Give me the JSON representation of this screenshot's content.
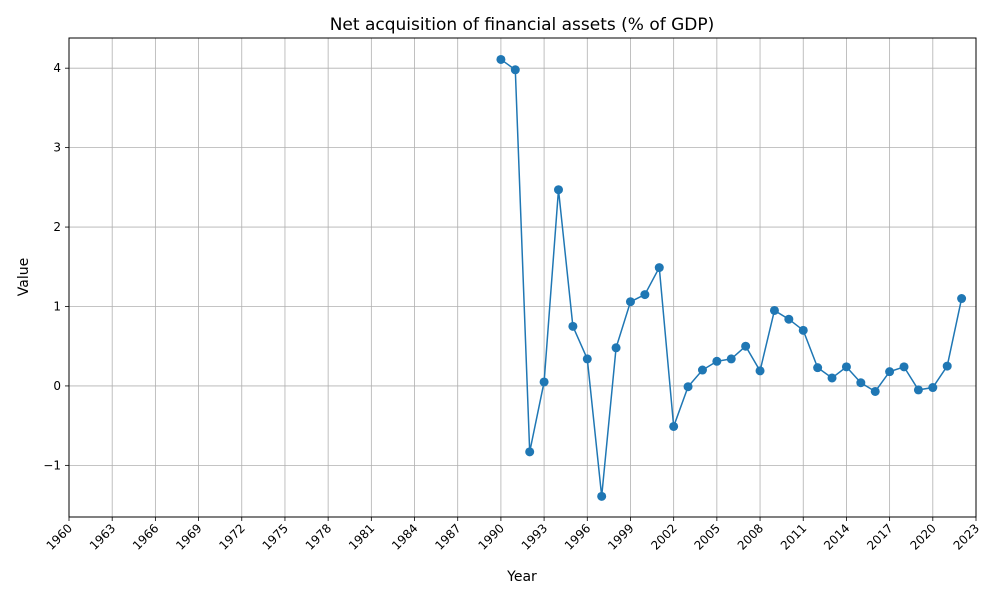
{
  "chart_data": {
    "type": "line",
    "title": "Net acquisition of financial assets (% of GDP)",
    "xlabel": "Year",
    "ylabel": "Value",
    "xlim": [
      1960,
      2023
    ],
    "ylim": [
      -1.65,
      4.38
    ],
    "x_ticks": [
      "1960",
      "1963",
      "1966",
      "1969",
      "1972",
      "1975",
      "1978",
      "1981",
      "1984",
      "1987",
      "1990",
      "1993",
      "1996",
      "1999",
      "2002",
      "2005",
      "2008",
      "2011",
      "2014",
      "2017",
      "2020",
      "2023"
    ],
    "y_ticks": [
      "−1",
      "0",
      "1",
      "2",
      "3",
      "4"
    ],
    "y_tick_values": [
      -1,
      0,
      1,
      2,
      3,
      4
    ],
    "grid": true,
    "series": [
      {
        "color": "#1f77b4",
        "marker": "circle",
        "x": [
          1990,
          1991,
          1992,
          1993,
          1994,
          1995,
          1996,
          1997,
          1998,
          1999,
          2000,
          2001,
          2002,
          2003,
          2004,
          2005,
          2006,
          2007,
          2008,
          2009,
          2010,
          2011,
          2012,
          2013,
          2014,
          2015,
          2016,
          2017,
          2018,
          2019,
          2020,
          2021,
          2022
        ],
        "values": [
          4.11,
          3.98,
          -0.83,
          0.05,
          2.47,
          0.75,
          0.34,
          -1.39,
          0.48,
          1.06,
          1.15,
          1.49,
          -0.51,
          -0.01,
          0.2,
          0.31,
          0.34,
          0.5,
          0.19,
          0.95,
          0.84,
          0.7,
          0.23,
          0.1,
          0.24,
          0.04,
          -0.07,
          0.18,
          0.24,
          -0.05,
          -0.02,
          0.25,
          1.1
        ]
      }
    ]
  }
}
